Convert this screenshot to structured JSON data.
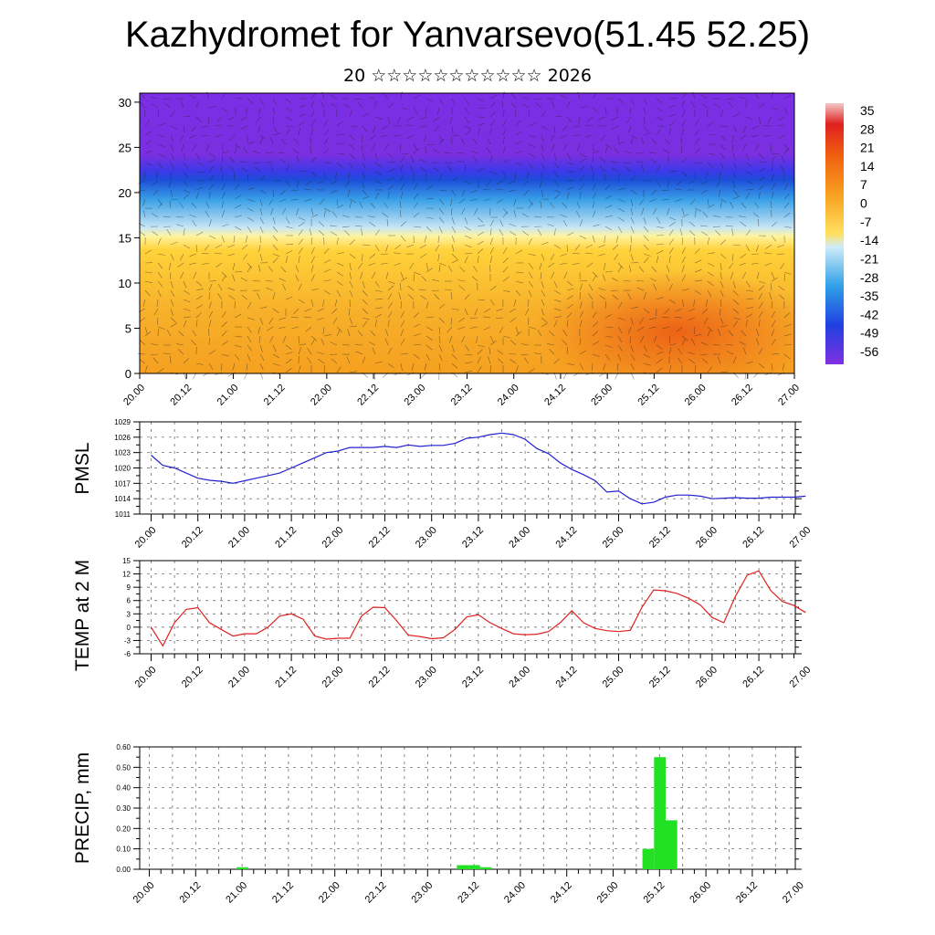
{
  "header": {
    "title": "Kazhydromet for Yanvarsevo(51.45 52.25)",
    "subtitle": "20 ☆☆☆☆☆☆☆☆☆☆☆ 2026"
  },
  "colors": {
    "pmsl_line": "#2020d0",
    "temp_line": "#e02020",
    "precip_bar": "#22e022",
    "grid": "#555555"
  },
  "chart_data": [
    {
      "type": "heatmap",
      "name": "cross-section",
      "title": "",
      "ylabel": "",
      "ylim": [
        0,
        31
      ],
      "y_ticks": [
        "0",
        "5",
        "10",
        "15",
        "20",
        "25",
        "30"
      ],
      "x_ticks": [
        "20.00",
        "20.12",
        "21.00",
        "21.12",
        "22.00",
        "22.12",
        "23.00",
        "23.12",
        "24.00",
        "24.12",
        "25.00",
        "25.12",
        "26.00",
        "26.12",
        "27.00"
      ],
      "colorbar": [
        "35",
        "28",
        "21",
        "14",
        "7",
        "0",
        "-7",
        "-14",
        "-21",
        "-28",
        "-35",
        "-42",
        "-49",
        "-56"
      ]
    },
    {
      "type": "line",
      "name": "pmsl",
      "ylabel": "PMSL",
      "ylim": [
        1011,
        1029
      ],
      "y_ticks": [
        "1011",
        "1014",
        "1017",
        "1020",
        "1023",
        "1026",
        "1029"
      ],
      "x_ticks": [
        "20.00",
        "20.12",
        "21.00",
        "21.12",
        "22.00",
        "22.12",
        "23.00",
        "23.12",
        "24.00",
        "24.12",
        "25.00",
        "25.12",
        "26.00",
        "26.12",
        "27.00"
      ],
      "x": [
        0,
        3,
        6,
        9,
        12,
        15,
        18,
        21,
        24,
        27,
        30,
        33,
        36,
        39,
        42,
        45,
        48,
        51,
        54,
        57,
        60,
        63,
        66,
        69,
        72,
        75,
        78,
        81,
        84,
        87,
        90,
        93,
        96,
        99,
        102,
        105,
        108,
        111,
        114,
        117,
        120,
        123,
        126,
        129,
        132,
        135,
        138,
        141,
        144,
        147,
        150,
        153,
        156,
        159,
        162,
        165,
        168
      ],
      "values": [
        1022.5,
        1020.5,
        1020.0,
        1019.0,
        1018.0,
        1017.6,
        1017.4,
        1017.0,
        1017.5,
        1018.0,
        1018.5,
        1019.0,
        1020.0,
        1021.0,
        1022.0,
        1023.0,
        1023.3,
        1024.0,
        1024.0,
        1024.0,
        1024.2,
        1024.0,
        1024.5,
        1024.2,
        1024.4,
        1024.4,
        1024.8,
        1025.8,
        1026.0,
        1026.5,
        1026.8,
        1026.5,
        1025.6,
        1023.8,
        1022.8,
        1021.0,
        1019.7,
        1018.7,
        1017.5,
        1015.3,
        1015.5,
        1014.0,
        1013.0,
        1013.3,
        1014.3,
        1014.7,
        1014.7,
        1014.5,
        1014.0,
        1014.1,
        1014.2,
        1014.1,
        1014.1,
        1014.3,
        1014.3,
        1014.3,
        1014.5
      ]
    },
    {
      "type": "line",
      "name": "temp",
      "ylabel": "TEMP at 2 M",
      "ylim": [
        -6,
        15
      ],
      "y_ticks": [
        "-6",
        "-3",
        "0",
        "3",
        "6",
        "9",
        "12",
        "15"
      ],
      "x_ticks": [
        "20.00",
        "20.12",
        "21.00",
        "21.12",
        "22.00",
        "22.12",
        "23.00",
        "23.12",
        "24.00",
        "24.12",
        "25.00",
        "25.12",
        "26.00",
        "26.12",
        "27.00"
      ],
      "x": [
        0,
        3,
        6,
        9,
        12,
        15,
        18,
        21,
        24,
        27,
        30,
        33,
        36,
        39,
        42,
        45,
        48,
        51,
        54,
        57,
        60,
        63,
        66,
        69,
        72,
        75,
        78,
        81,
        84,
        87,
        90,
        93,
        96,
        99,
        102,
        105,
        108,
        111,
        114,
        117,
        120,
        123,
        126,
        129,
        132,
        135,
        138,
        141,
        144,
        147,
        150,
        153,
        156,
        159,
        162,
        165,
        168
      ],
      "values": [
        0.0,
        -4.2,
        1.0,
        4.0,
        4.4,
        1.0,
        -0.5,
        -2.0,
        -1.5,
        -1.5,
        0.0,
        2.5,
        3.0,
        1.8,
        -2.0,
        -2.7,
        -2.5,
        -2.5,
        2.5,
        4.5,
        4.4,
        1.5,
        -1.8,
        -2.1,
        -2.6,
        -2.4,
        -0.5,
        2.3,
        2.8,
        1.0,
        -0.3,
        -1.5,
        -1.7,
        -1.6,
        -1.0,
        1.0,
        3.7,
        1.0,
        -0.3,
        -0.8,
        -1.0,
        -0.7,
        4.5,
        8.4,
        8.2,
        7.6,
        6.5,
        5.0,
        2.2,
        1.0,
        7.0,
        11.7,
        12.7,
        8.3,
        5.8,
        4.9,
        3.3
      ]
    },
    {
      "type": "bar",
      "name": "precip",
      "ylabel": "PRECIP, mm",
      "ylim": [
        0,
        0.6
      ],
      "y_ticks": [
        "0.00",
        "0.10",
        "0.20",
        "0.30",
        "0.40",
        "0.50",
        "0.60"
      ],
      "x_ticks": [
        "20.00",
        "20.12",
        "21.00",
        "21.12",
        "22.00",
        "22.12",
        "23.00",
        "23.12",
        "24.00",
        "24.12",
        "25.00",
        "25.12",
        "26.00",
        "26.12",
        "27.00"
      ],
      "bars": [
        {
          "x": 24,
          "value": 0.01
        },
        {
          "x": 81,
          "value": 0.02
        },
        {
          "x": 84,
          "value": 0.02
        },
        {
          "x": 87,
          "value": 0.01
        },
        {
          "x": 129,
          "value": 0.1
        },
        {
          "x": 132,
          "value": 0.55
        },
        {
          "x": 135,
          "value": 0.24
        }
      ]
    }
  ]
}
